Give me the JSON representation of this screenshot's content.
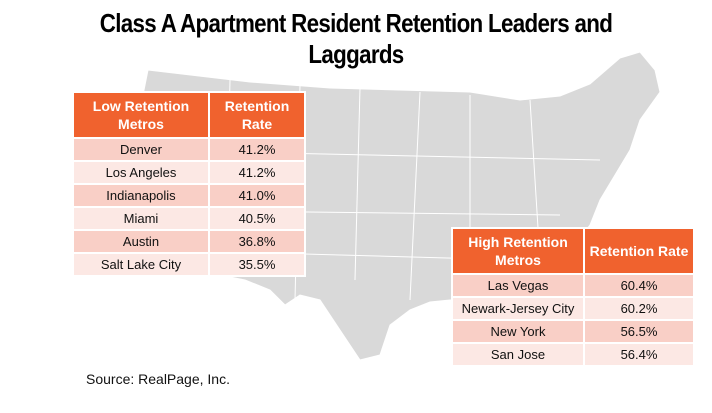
{
  "title": "Class A Apartment Resident Retention Leaders and Laggards",
  "low_table": {
    "headers": [
      "Low  Retention Metros",
      "Retention Rate"
    ],
    "rows": [
      [
        "Denver",
        "41.2%"
      ],
      [
        "Los Angeles",
        "41.2%"
      ],
      [
        "Indianapolis",
        "41.0%"
      ],
      [
        "Miami",
        "40.5%"
      ],
      [
        "Austin",
        "36.8%"
      ],
      [
        "Salt Lake City",
        "35.5%"
      ]
    ]
  },
  "high_table": {
    "headers": [
      "High  Retention Metros",
      "Retention Rate"
    ],
    "rows": [
      [
        "Las Vegas",
        "60.4%"
      ],
      [
        "Newark-Jersey City",
        "60.2%"
      ],
      [
        "New York",
        "56.5%"
      ],
      [
        "San Jose",
        "56.4%"
      ]
    ]
  },
  "source": "Source: RealPage, Inc.",
  "colors": {
    "header": "#f0622e",
    "row_dark": "#f9cfc6",
    "row_light": "#fce8e4",
    "map": "#d9d9d9"
  }
}
